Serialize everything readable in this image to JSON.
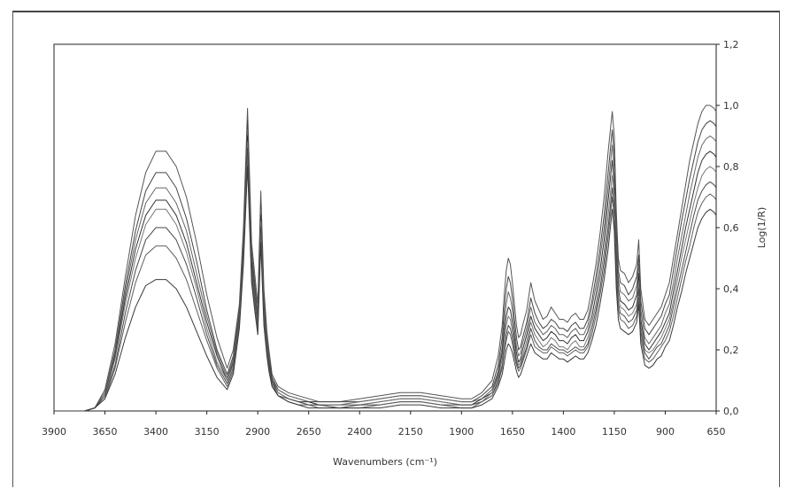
{
  "chart_data": {
    "type": "line",
    "title": "",
    "xlabel": "Wavenumbers (cm⁻¹)",
    "ylabel": "Log(1/R)",
    "xlim": [
      3900,
      650
    ],
    "ylim": [
      0.0,
      1.2
    ],
    "x_reversed": true,
    "y_axis_side": "right",
    "grid": false,
    "legend": "none",
    "x_ticks": [
      {
        "value": 3900,
        "label": "3900"
      },
      {
        "value": 3650,
        "label": "3650"
      },
      {
        "value": 3400,
        "label": "3400"
      },
      {
        "value": 3150,
        "label": "3150"
      },
      {
        "value": 2900,
        "label": "2900"
      },
      {
        "value": 2650,
        "label": "2650"
      },
      {
        "value": 2400,
        "label": "2400"
      },
      {
        "value": 2150,
        "label": "2150"
      },
      {
        "value": 1900,
        "label": "1900"
      },
      {
        "value": 1650,
        "label": "1650"
      },
      {
        "value": 1400,
        "label": "1400"
      },
      {
        "value": 1150,
        "label": "1150"
      },
      {
        "value": 900,
        "label": "900"
      },
      {
        "value": 650,
        "label": "650"
      }
    ],
    "y_ticks": [
      {
        "value": 0.0,
        "label": "0,0"
      },
      {
        "value": 0.2,
        "label": "0,2"
      },
      {
        "value": 0.4,
        "label": "0,4"
      },
      {
        "value": 0.6,
        "label": "0,6"
      },
      {
        "value": 0.8,
        "label": "0,8"
      },
      {
        "value": 1.0,
        "label": "1,0"
      },
      {
        "value": 1.2,
        "label": "1,2"
      }
    ],
    "x": [
      3900,
      3750,
      3700,
      3650,
      3600,
      3550,
      3500,
      3450,
      3400,
      3350,
      3300,
      3250,
      3200,
      3150,
      3100,
      3050,
      3020,
      2990,
      2970,
      2950,
      2930,
      2915,
      2900,
      2885,
      2870,
      2855,
      2845,
      2830,
      2800,
      2750,
      2700,
      2650,
      2600,
      2500,
      2400,
      2300,
      2200,
      2150,
      2100,
      2000,
      1900,
      1850,
      1800,
      1750,
      1720,
      1700,
      1690,
      1680,
      1670,
      1660,
      1650,
      1640,
      1630,
      1620,
      1610,
      1600,
      1580,
      1560,
      1540,
      1520,
      1500,
      1480,
      1460,
      1440,
      1420,
      1400,
      1380,
      1360,
      1340,
      1320,
      1300,
      1280,
      1260,
      1240,
      1220,
      1200,
      1180,
      1160,
      1150,
      1140,
      1130,
      1120,
      1100,
      1080,
      1060,
      1040,
      1030,
      1020,
      1000,
      980,
      960,
      940,
      920,
      900,
      880,
      860,
      840,
      820,
      800,
      780,
      760,
      740,
      720,
      700,
      680,
      660,
      650
    ],
    "series": [
      {
        "values": [
          0,
          0,
          0.01,
          0.07,
          0.22,
          0.44,
          0.64,
          0.78,
          0.85,
          0.85,
          0.8,
          0.7,
          0.55,
          0.38,
          0.24,
          0.14,
          0.2,
          0.35,
          0.6,
          0.99,
          0.55,
          0.45,
          0.35,
          0.72,
          0.4,
          0.26,
          0.2,
          0.12,
          0.08,
          0.06,
          0.05,
          0.04,
          0.03,
          0.03,
          0.04,
          0.05,
          0.06,
          0.06,
          0.06,
          0.05,
          0.04,
          0.04,
          0.06,
          0.1,
          0.18,
          0.28,
          0.38,
          0.46,
          0.5,
          0.48,
          0.42,
          0.35,
          0.28,
          0.24,
          0.25,
          0.28,
          0.33,
          0.42,
          0.36,
          0.33,
          0.3,
          0.31,
          0.34,
          0.32,
          0.3,
          0.3,
          0.29,
          0.31,
          0.32,
          0.3,
          0.3,
          0.33,
          0.4,
          0.48,
          0.58,
          0.7,
          0.85,
          0.98,
          0.9,
          0.65,
          0.5,
          0.46,
          0.45,
          0.42,
          0.44,
          0.48,
          0.56,
          0.4,
          0.3,
          0.28,
          0.3,
          0.32,
          0.34,
          0.38,
          0.42,
          0.5,
          0.58,
          0.66,
          0.74,
          0.82,
          0.88,
          0.94,
          0.98,
          1.0,
          1.0,
          0.99,
          0.98
        ]
      },
      {
        "values": [
          0,
          0,
          0.01,
          0.06,
          0.2,
          0.41,
          0.59,
          0.72,
          0.78,
          0.78,
          0.73,
          0.63,
          0.49,
          0.33,
          0.2,
          0.12,
          0.18,
          0.33,
          0.57,
          0.95,
          0.52,
          0.42,
          0.32,
          0.68,
          0.37,
          0.24,
          0.18,
          0.11,
          0.07,
          0.05,
          0.04,
          0.03,
          0.03,
          0.03,
          0.03,
          0.04,
          0.05,
          0.05,
          0.05,
          0.04,
          0.03,
          0.03,
          0.05,
          0.08,
          0.15,
          0.24,
          0.33,
          0.4,
          0.44,
          0.42,
          0.37,
          0.3,
          0.24,
          0.2,
          0.21,
          0.24,
          0.29,
          0.37,
          0.32,
          0.29,
          0.27,
          0.28,
          0.3,
          0.29,
          0.27,
          0.27,
          0.26,
          0.28,
          0.29,
          0.27,
          0.27,
          0.3,
          0.36,
          0.44,
          0.53,
          0.64,
          0.78,
          0.92,
          0.84,
          0.6,
          0.46,
          0.42,
          0.41,
          0.38,
          0.4,
          0.44,
          0.51,
          0.36,
          0.27,
          0.25,
          0.27,
          0.29,
          0.31,
          0.35,
          0.38,
          0.46,
          0.54,
          0.62,
          0.69,
          0.76,
          0.82,
          0.88,
          0.92,
          0.94,
          0.95,
          0.94,
          0.93
        ]
      },
      {
        "values": [
          0,
          0,
          0.01,
          0.06,
          0.19,
          0.39,
          0.56,
          0.68,
          0.73,
          0.73,
          0.68,
          0.59,
          0.45,
          0.31,
          0.19,
          0.11,
          0.17,
          0.32,
          0.55,
          0.92,
          0.5,
          0.4,
          0.31,
          0.66,
          0.35,
          0.23,
          0.17,
          0.1,
          0.07,
          0.05,
          0.04,
          0.03,
          0.02,
          0.02,
          0.03,
          0.04,
          0.05,
          0.05,
          0.05,
          0.04,
          0.03,
          0.03,
          0.04,
          0.07,
          0.13,
          0.21,
          0.29,
          0.35,
          0.39,
          0.37,
          0.33,
          0.27,
          0.21,
          0.18,
          0.19,
          0.22,
          0.27,
          0.34,
          0.29,
          0.27,
          0.25,
          0.26,
          0.28,
          0.27,
          0.25,
          0.25,
          0.24,
          0.26,
          0.27,
          0.25,
          0.25,
          0.28,
          0.34,
          0.41,
          0.5,
          0.6,
          0.73,
          0.87,
          0.79,
          0.56,
          0.43,
          0.39,
          0.38,
          0.36,
          0.37,
          0.41,
          0.48,
          0.33,
          0.24,
          0.22,
          0.24,
          0.26,
          0.28,
          0.32,
          0.35,
          0.42,
          0.5,
          0.57,
          0.64,
          0.71,
          0.77,
          0.83,
          0.87,
          0.89,
          0.9,
          0.89,
          0.88
        ]
      },
      {
        "values": [
          0,
          0,
          0.01,
          0.05,
          0.18,
          0.37,
          0.53,
          0.64,
          0.69,
          0.69,
          0.64,
          0.55,
          0.42,
          0.29,
          0.18,
          0.1,
          0.16,
          0.31,
          0.54,
          0.9,
          0.49,
          0.39,
          0.3,
          0.64,
          0.34,
          0.22,
          0.16,
          0.1,
          0.06,
          0.04,
          0.03,
          0.03,
          0.02,
          0.02,
          0.02,
          0.03,
          0.04,
          0.04,
          0.04,
          0.03,
          0.02,
          0.02,
          0.04,
          0.06,
          0.12,
          0.19,
          0.26,
          0.31,
          0.34,
          0.33,
          0.29,
          0.24,
          0.19,
          0.16,
          0.17,
          0.2,
          0.25,
          0.31,
          0.27,
          0.25,
          0.23,
          0.24,
          0.26,
          0.25,
          0.23,
          0.23,
          0.22,
          0.24,
          0.25,
          0.23,
          0.23,
          0.26,
          0.31,
          0.38,
          0.46,
          0.56,
          0.69,
          0.82,
          0.74,
          0.52,
          0.4,
          0.36,
          0.35,
          0.33,
          0.34,
          0.38,
          0.45,
          0.3,
          0.22,
          0.2,
          0.22,
          0.24,
          0.26,
          0.29,
          0.32,
          0.39,
          0.46,
          0.53,
          0.6,
          0.66,
          0.72,
          0.78,
          0.82,
          0.84,
          0.85,
          0.84,
          0.83
        ]
      },
      {
        "values": [
          0,
          0,
          0.01,
          0.05,
          0.17,
          0.35,
          0.5,
          0.61,
          0.66,
          0.66,
          0.61,
          0.52,
          0.4,
          0.27,
          0.16,
          0.1,
          0.15,
          0.3,
          0.53,
          0.88,
          0.47,
          0.38,
          0.29,
          0.62,
          0.33,
          0.21,
          0.15,
          0.09,
          0.06,
          0.04,
          0.03,
          0.02,
          0.02,
          0.02,
          0.02,
          0.03,
          0.04,
          0.04,
          0.04,
          0.03,
          0.02,
          0.02,
          0.03,
          0.06,
          0.11,
          0.17,
          0.23,
          0.28,
          0.31,
          0.3,
          0.26,
          0.22,
          0.17,
          0.15,
          0.16,
          0.18,
          0.23,
          0.29,
          0.25,
          0.23,
          0.21,
          0.22,
          0.24,
          0.23,
          0.21,
          0.21,
          0.2,
          0.22,
          0.23,
          0.21,
          0.21,
          0.24,
          0.29,
          0.35,
          0.43,
          0.52,
          0.64,
          0.77,
          0.7,
          0.49,
          0.37,
          0.34,
          0.33,
          0.31,
          0.32,
          0.35,
          0.42,
          0.28,
          0.2,
          0.19,
          0.2,
          0.22,
          0.24,
          0.27,
          0.3,
          0.36,
          0.43,
          0.5,
          0.56,
          0.62,
          0.68,
          0.73,
          0.77,
          0.79,
          0.8,
          0.79,
          0.78
        ]
      },
      {
        "values": [
          0,
          0,
          0.01,
          0.05,
          0.15,
          0.32,
          0.46,
          0.56,
          0.6,
          0.6,
          0.56,
          0.48,
          0.37,
          0.25,
          0.15,
          0.09,
          0.14,
          0.29,
          0.52,
          0.86,
          0.46,
          0.37,
          0.28,
          0.6,
          0.32,
          0.2,
          0.15,
          0.09,
          0.05,
          0.04,
          0.03,
          0.02,
          0.02,
          0.01,
          0.02,
          0.02,
          0.03,
          0.03,
          0.03,
          0.02,
          0.02,
          0.02,
          0.03,
          0.05,
          0.1,
          0.15,
          0.2,
          0.25,
          0.28,
          0.27,
          0.24,
          0.2,
          0.16,
          0.14,
          0.15,
          0.17,
          0.21,
          0.27,
          0.23,
          0.21,
          0.2,
          0.2,
          0.22,
          0.21,
          0.2,
          0.2,
          0.19,
          0.2,
          0.21,
          0.2,
          0.2,
          0.22,
          0.27,
          0.33,
          0.4,
          0.49,
          0.6,
          0.73,
          0.66,
          0.46,
          0.35,
          0.32,
          0.31,
          0.29,
          0.3,
          0.33,
          0.4,
          0.26,
          0.19,
          0.17,
          0.19,
          0.21,
          0.22,
          0.25,
          0.28,
          0.34,
          0.4,
          0.46,
          0.52,
          0.58,
          0.64,
          0.69,
          0.72,
          0.74,
          0.75,
          0.74,
          0.73
        ]
      },
      {
        "values": [
          0,
          0,
          0.01,
          0.04,
          0.14,
          0.29,
          0.42,
          0.51,
          0.54,
          0.54,
          0.5,
          0.43,
          0.33,
          0.23,
          0.14,
          0.08,
          0.13,
          0.28,
          0.5,
          0.83,
          0.44,
          0.35,
          0.27,
          0.58,
          0.3,
          0.19,
          0.14,
          0.08,
          0.05,
          0.03,
          0.02,
          0.02,
          0.01,
          0.01,
          0.01,
          0.02,
          0.03,
          0.03,
          0.03,
          0.02,
          0.01,
          0.01,
          0.03,
          0.05,
          0.09,
          0.14,
          0.19,
          0.23,
          0.26,
          0.25,
          0.22,
          0.18,
          0.15,
          0.13,
          0.14,
          0.16,
          0.2,
          0.25,
          0.21,
          0.2,
          0.19,
          0.19,
          0.21,
          0.2,
          0.19,
          0.19,
          0.18,
          0.19,
          0.2,
          0.19,
          0.19,
          0.21,
          0.25,
          0.31,
          0.38,
          0.46,
          0.57,
          0.7,
          0.63,
          0.43,
          0.33,
          0.3,
          0.29,
          0.27,
          0.28,
          0.31,
          0.37,
          0.24,
          0.17,
          0.16,
          0.17,
          0.19,
          0.21,
          0.23,
          0.26,
          0.31,
          0.37,
          0.43,
          0.49,
          0.54,
          0.6,
          0.65,
          0.68,
          0.7,
          0.71,
          0.7,
          0.69
        ]
      },
      {
        "values": [
          0,
          0,
          0.01,
          0.04,
          0.12,
          0.24,
          0.34,
          0.41,
          0.43,
          0.43,
          0.4,
          0.34,
          0.26,
          0.18,
          0.11,
          0.07,
          0.12,
          0.27,
          0.48,
          0.8,
          0.42,
          0.33,
          0.25,
          0.55,
          0.28,
          0.18,
          0.13,
          0.08,
          0.05,
          0.03,
          0.02,
          0.01,
          0.01,
          0.01,
          0.01,
          0.01,
          0.02,
          0.02,
          0.02,
          0.01,
          0.01,
          0.01,
          0.02,
          0.04,
          0.08,
          0.12,
          0.16,
          0.2,
          0.22,
          0.21,
          0.19,
          0.16,
          0.13,
          0.11,
          0.12,
          0.14,
          0.18,
          0.22,
          0.19,
          0.18,
          0.17,
          0.17,
          0.19,
          0.18,
          0.17,
          0.17,
          0.16,
          0.17,
          0.18,
          0.17,
          0.17,
          0.19,
          0.23,
          0.28,
          0.35,
          0.43,
          0.53,
          0.66,
          0.59,
          0.4,
          0.3,
          0.27,
          0.26,
          0.25,
          0.26,
          0.29,
          0.35,
          0.22,
          0.15,
          0.14,
          0.15,
          0.17,
          0.18,
          0.21,
          0.23,
          0.28,
          0.34,
          0.39,
          0.45,
          0.5,
          0.55,
          0.6,
          0.63,
          0.65,
          0.66,
          0.65,
          0.64
        ]
      }
    ]
  },
  "colors": {
    "series": [
      "#555555",
      "#444444",
      "#666666",
      "#333333",
      "#777777",
      "#4a4a4a",
      "#5e5e5e",
      "#3a3a3a"
    ],
    "axis": "#222222",
    "background": "#ffffff"
  }
}
